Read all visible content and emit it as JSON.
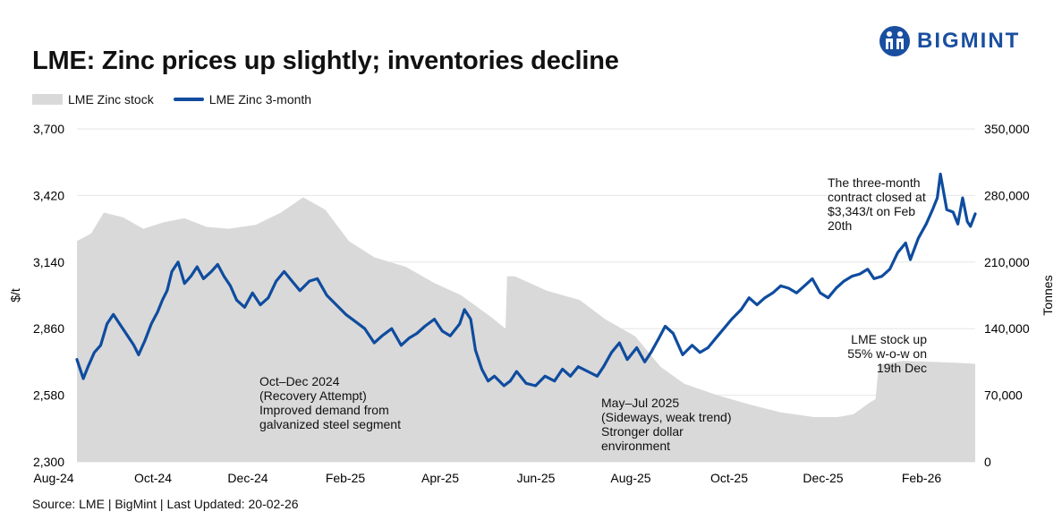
{
  "title": "LME: Zinc prices up slightly; inventories decline",
  "brand": {
    "name": "BIGMINT",
    "color": "#1a4fa0"
  },
  "source": "Source: LME | BigMint | Last Updated: 20-02-26",
  "colors": {
    "price_line": "#0f4c9e",
    "stock_area": "#d9d9d9",
    "grid": "#e6e6e6"
  },
  "chart_data": {
    "type": "line",
    "x_ticks": [
      "Aug-24",
      "Oct-24",
      "Dec-24",
      "Feb-25",
      "Apr-25",
      "Jun-25",
      "Aug-25",
      "Oct-25",
      "Dec-25",
      "Feb-26"
    ],
    "x_range": [
      "2024-08-01",
      "2026-02-20"
    ],
    "y_left": {
      "label": "$/t",
      "range": [
        2300,
        3700
      ],
      "ticks": [
        "2,300",
        "2,580",
        "2,860",
        "3,140",
        "3,420",
        "3,700"
      ]
    },
    "y_right": {
      "label": "Tonnes",
      "range": [
        0,
        350000
      ],
      "ticks": [
        "0",
        "70,000",
        "140,000",
        "210,000",
        "280,000",
        "350,000"
      ]
    },
    "grid": "horizontal",
    "legend_position": "top-left",
    "series": [
      {
        "name": "LME Zinc stock",
        "type": "area",
        "axis": "right",
        "points": [
          [
            "2024-08-01",
            232000
          ],
          [
            "2024-08-10",
            240000
          ],
          [
            "2024-08-18",
            262000
          ],
          [
            "2024-08-30",
            257000
          ],
          [
            "2024-09-12",
            245000
          ],
          [
            "2024-09-25",
            252000
          ],
          [
            "2024-10-08",
            256000
          ],
          [
            "2024-10-22",
            247000
          ],
          [
            "2024-11-05",
            245000
          ],
          [
            "2024-11-22",
            249000
          ],
          [
            "2024-12-08",
            262000
          ],
          [
            "2024-12-22",
            278000
          ],
          [
            "2025-01-05",
            265000
          ],
          [
            "2025-01-20",
            232000
          ],
          [
            "2025-02-05",
            215000
          ],
          [
            "2025-02-25",
            205000
          ],
          [
            "2025-03-15",
            188000
          ],
          [
            "2025-04-01",
            175000
          ],
          [
            "2025-04-20",
            152000
          ],
          [
            "2025-04-29",
            140000
          ],
          [
            "2025-04-30",
            195000
          ],
          [
            "2025-05-05",
            195000
          ],
          [
            "2025-05-25",
            180000
          ],
          [
            "2025-06-15",
            170000
          ],
          [
            "2025-07-01",
            150000
          ],
          [
            "2025-07-20",
            132000
          ],
          [
            "2025-08-05",
            100000
          ],
          [
            "2025-08-20",
            82000
          ],
          [
            "2025-09-10",
            70000
          ],
          [
            "2025-10-01",
            60000
          ],
          [
            "2025-10-20",
            52000
          ],
          [
            "2025-11-10",
            47000
          ],
          [
            "2025-11-25",
            47000
          ],
          [
            "2025-12-05",
            50000
          ],
          [
            "2025-12-15",
            62000
          ],
          [
            "2025-12-19",
            66000
          ],
          [
            "2025-12-21",
            102000
          ],
          [
            "2026-01-05",
            106000
          ],
          [
            "2026-01-25",
            105000
          ],
          [
            "2026-02-10",
            104000
          ],
          [
            "2026-02-20",
            103000
          ]
        ]
      },
      {
        "name": "LME Zinc 3-month",
        "type": "line",
        "axis": "left",
        "points": [
          [
            "2024-08-01",
            2730
          ],
          [
            "2024-08-05",
            2650
          ],
          [
            "2024-08-08",
            2700
          ],
          [
            "2024-08-12",
            2760
          ],
          [
            "2024-08-16",
            2790
          ],
          [
            "2024-08-20",
            2880
          ],
          [
            "2024-08-24",
            2920
          ],
          [
            "2024-08-28",
            2880
          ],
          [
            "2024-09-02",
            2830
          ],
          [
            "2024-09-06",
            2790
          ],
          [
            "2024-09-09",
            2750
          ],
          [
            "2024-09-13",
            2810
          ],
          [
            "2024-09-17",
            2880
          ],
          [
            "2024-09-21",
            2930
          ],
          [
            "2024-09-24",
            2980
          ],
          [
            "2024-09-27",
            3020
          ],
          [
            "2024-09-30",
            3100
          ],
          [
            "2024-10-04",
            3140
          ],
          [
            "2024-10-08",
            3050
          ],
          [
            "2024-10-12",
            3080
          ],
          [
            "2024-10-16",
            3120
          ],
          [
            "2024-10-20",
            3070
          ],
          [
            "2024-10-25",
            3100
          ],
          [
            "2024-10-29",
            3130
          ],
          [
            "2024-11-02",
            3080
          ],
          [
            "2024-11-06",
            3040
          ],
          [
            "2024-11-10",
            2980
          ],
          [
            "2024-11-15",
            2950
          ],
          [
            "2024-11-20",
            3010
          ],
          [
            "2024-11-25",
            2960
          ],
          [
            "2024-11-30",
            2990
          ],
          [
            "2024-12-05",
            3060
          ],
          [
            "2024-12-10",
            3100
          ],
          [
            "2024-12-15",
            3060
          ],
          [
            "2024-12-20",
            3020
          ],
          [
            "2024-12-26",
            3060
          ],
          [
            "2024-12-31",
            3070
          ],
          [
            "2025-01-06",
            3000
          ],
          [
            "2025-01-12",
            2960
          ],
          [
            "2025-01-18",
            2920
          ],
          [
            "2025-01-24",
            2890
          ],
          [
            "2025-01-30",
            2860
          ],
          [
            "2025-02-05",
            2800
          ],
          [
            "2025-02-10",
            2830
          ],
          [
            "2025-02-16",
            2860
          ],
          [
            "2025-02-22",
            2790
          ],
          [
            "2025-02-27",
            2820
          ],
          [
            "2025-03-04",
            2840
          ],
          [
            "2025-03-09",
            2870
          ],
          [
            "2025-03-15",
            2900
          ],
          [
            "2025-03-20",
            2850
          ],
          [
            "2025-03-25",
            2830
          ],
          [
            "2025-03-31",
            2880
          ],
          [
            "2025-04-03",
            2940
          ],
          [
            "2025-04-07",
            2900
          ],
          [
            "2025-04-10",
            2770
          ],
          [
            "2025-04-14",
            2690
          ],
          [
            "2025-04-18",
            2640
          ],
          [
            "2025-04-22",
            2660
          ],
          [
            "2025-04-28",
            2620
          ],
          [
            "2025-05-02",
            2640
          ],
          [
            "2025-05-06",
            2680
          ],
          [
            "2025-05-12",
            2630
          ],
          [
            "2025-05-18",
            2620
          ],
          [
            "2025-05-24",
            2660
          ],
          [
            "2025-05-30",
            2640
          ],
          [
            "2025-06-04",
            2690
          ],
          [
            "2025-06-09",
            2660
          ],
          [
            "2025-06-14",
            2700
          ],
          [
            "2025-06-20",
            2680
          ],
          [
            "2025-06-26",
            2660
          ],
          [
            "2025-06-30",
            2700
          ],
          [
            "2025-07-05",
            2760
          ],
          [
            "2025-07-10",
            2800
          ],
          [
            "2025-07-15",
            2730
          ],
          [
            "2025-07-21",
            2780
          ],
          [
            "2025-07-26",
            2720
          ],
          [
            "2025-07-30",
            2760
          ],
          [
            "2025-08-04",
            2820
          ],
          [
            "2025-08-08",
            2870
          ],
          [
            "2025-08-13",
            2840
          ],
          [
            "2025-08-19",
            2750
          ],
          [
            "2025-08-25",
            2790
          ],
          [
            "2025-08-30",
            2760
          ],
          [
            "2025-09-04",
            2780
          ],
          [
            "2025-09-09",
            2820
          ],
          [
            "2025-09-14",
            2860
          ],
          [
            "2025-09-19",
            2900
          ],
          [
            "2025-09-25",
            2940
          ],
          [
            "2025-09-30",
            2990
          ],
          [
            "2025-10-05",
            2960
          ],
          [
            "2025-10-10",
            2990
          ],
          [
            "2025-10-15",
            3010
          ],
          [
            "2025-10-20",
            3040
          ],
          [
            "2025-10-25",
            3030
          ],
          [
            "2025-10-30",
            3010
          ],
          [
            "2025-11-04",
            3040
          ],
          [
            "2025-11-09",
            3070
          ],
          [
            "2025-11-14",
            3010
          ],
          [
            "2025-11-19",
            2990
          ],
          [
            "2025-11-24",
            3030
          ],
          [
            "2025-11-29",
            3060
          ],
          [
            "2025-12-04",
            3080
          ],
          [
            "2025-12-09",
            3090
          ],
          [
            "2025-12-14",
            3110
          ],
          [
            "2025-12-18",
            3070
          ],
          [
            "2025-12-23",
            3080
          ],
          [
            "2025-12-28",
            3110
          ],
          [
            "2026-01-02",
            3180
          ],
          [
            "2026-01-07",
            3220
          ],
          [
            "2026-01-10",
            3150
          ],
          [
            "2026-01-15",
            3240
          ],
          [
            "2026-01-20",
            3300
          ],
          [
            "2026-01-24",
            3360
          ],
          [
            "2026-01-27",
            3410
          ],
          [
            "2026-01-29",
            3510
          ],
          [
            "2026-02-02",
            3360
          ],
          [
            "2026-02-06",
            3350
          ],
          [
            "2026-02-09",
            3300
          ],
          [
            "2026-02-12",
            3410
          ],
          [
            "2026-02-15",
            3310
          ],
          [
            "2026-02-17",
            3290
          ],
          [
            "2026-02-20",
            3343
          ]
        ]
      }
    ],
    "annotations": [
      {
        "lines": [
          "Oct–Dec 2024",
          "(Recovery Attempt)",
          "Improved demand from",
          "galvanized steel segment"
        ]
      },
      {
        "lines": [
          "May–Jul 2025",
          "(Sideways, weak trend)",
          "Stronger dollar",
          "environment"
        ]
      },
      {
        "lines": [
          "The three-month",
          "contract closed at",
          "$3,343/t on Feb",
          "20th"
        ]
      },
      {
        "lines": [
          "LME stock up",
          "55% w-o-w on",
          "19th Dec"
        ]
      }
    ]
  }
}
